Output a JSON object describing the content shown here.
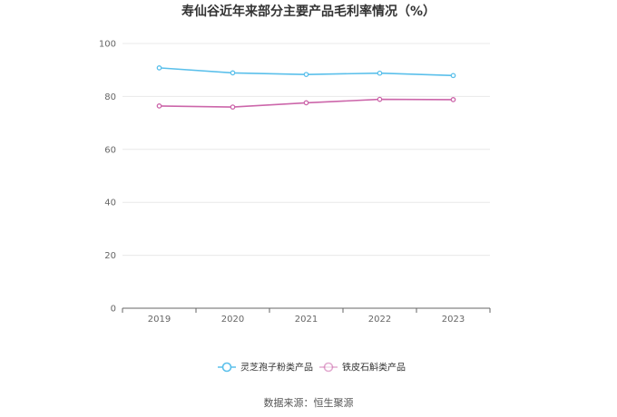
{
  "chart_data": {
    "type": "line",
    "title": "寿仙谷近年来部分主要产品毛利率情况（%）",
    "categories": [
      "2019",
      "2020",
      "2021",
      "2022",
      "2023"
    ],
    "series": [
      {
        "name": "灵芝孢子粉类产品",
        "values": [
          90.8,
          88.9,
          88.3,
          88.8,
          87.9
        ],
        "color": "#5bc0eb"
      },
      {
        "name": "铁皮石斛类产品",
        "values": [
          76.4,
          76.0,
          77.6,
          78.9,
          78.8
        ],
        "color": "#cc66aa"
      }
    ],
    "ylim": [
      0,
      100
    ],
    "yticks": [
      "0",
      "20",
      "40",
      "60",
      "80",
      "100"
    ],
    "grid": true,
    "legend": "bottom"
  },
  "source": "数据来源：恒生聚源"
}
